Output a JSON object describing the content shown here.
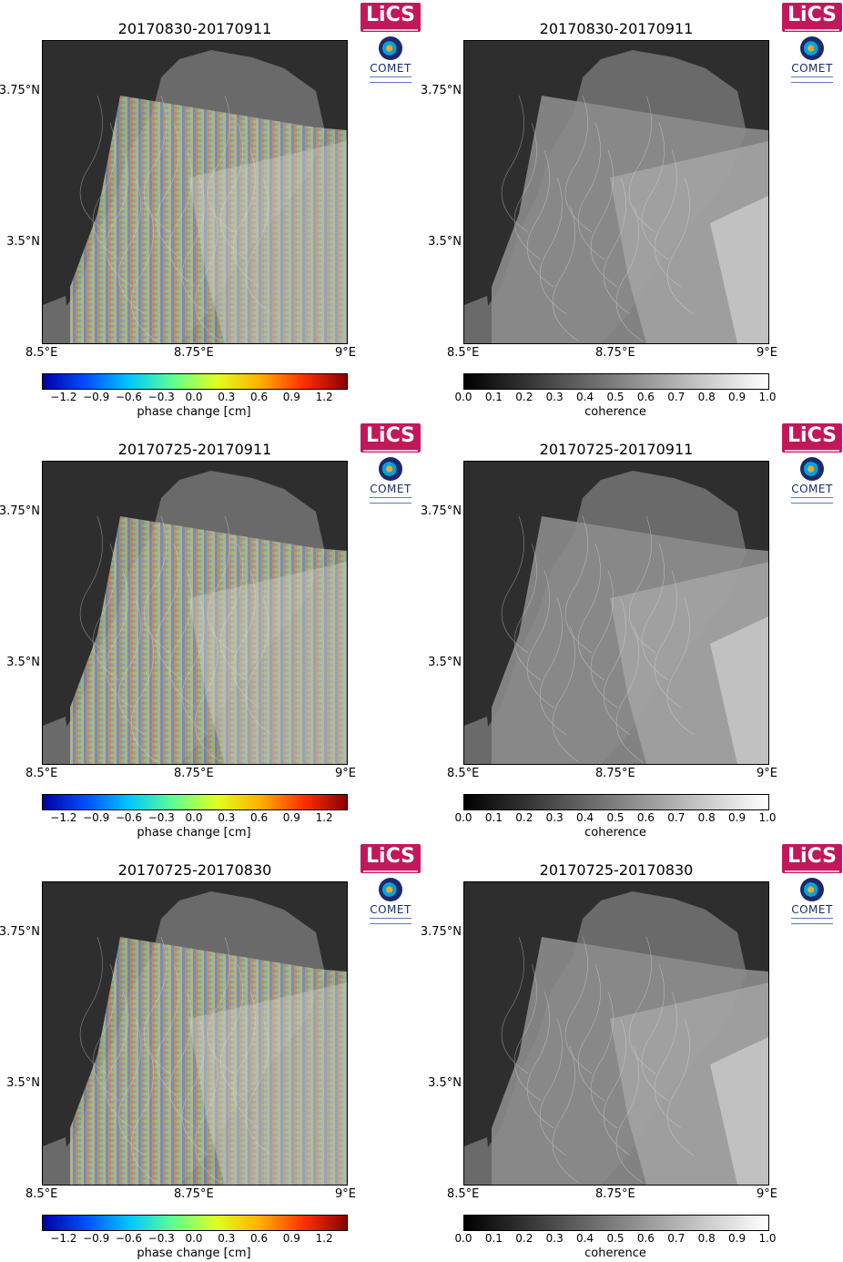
{
  "logos": {
    "lics": "LiCS",
    "comet": "COMET"
  },
  "panels": [
    {
      "title": "20170830-20170911",
      "kind": "phase"
    },
    {
      "title": "20170830-20170911",
      "kind": "coherence"
    },
    {
      "title": "20170725-20170911",
      "kind": "phase"
    },
    {
      "title": "20170725-20170911",
      "kind": "coherence"
    },
    {
      "title": "20170725-20170830",
      "kind": "phase"
    },
    {
      "title": "20170725-20170830",
      "kind": "coherence"
    }
  ],
  "axes": {
    "y_ticks": [
      "3.75°N",
      "3.5°N"
    ],
    "x_ticks": [
      "8.5°E",
      "8.75°E",
      "9°E"
    ]
  },
  "phase_colorbar": {
    "label": "phase change [cm]",
    "ticks": [
      "−1.2",
      "−0.9",
      "−0.6",
      "−0.3",
      "0.0",
      "0.3",
      "0.6",
      "0.9",
      "1.2"
    ],
    "colors": [
      "#0000a0",
      "#0050ff",
      "#00c8ff",
      "#60ff90",
      "#e0ff20",
      "#ffb000",
      "#ff3000",
      "#8b0000"
    ]
  },
  "coherence_colorbar": {
    "label": "coherence",
    "ticks": [
      "0.0",
      "0.1",
      "0.2",
      "0.3",
      "0.4",
      "0.5",
      "0.6",
      "0.7",
      "0.8",
      "0.9",
      "1.0"
    ],
    "colors": [
      "#000000",
      "#ffffff"
    ]
  }
}
